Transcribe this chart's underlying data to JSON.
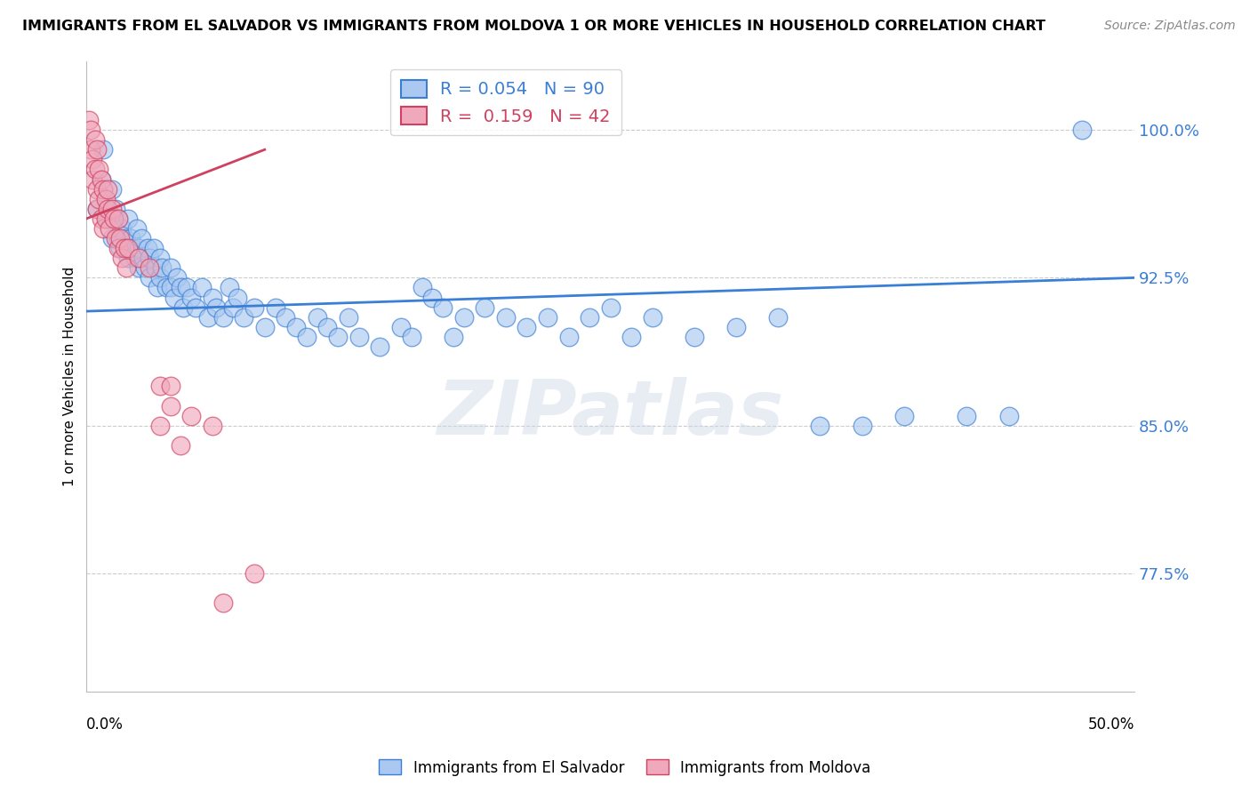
{
  "title": "IMMIGRANTS FROM EL SALVADOR VS IMMIGRANTS FROM MOLDOVA 1 OR MORE VEHICLES IN HOUSEHOLD CORRELATION CHART",
  "source": "Source: ZipAtlas.com",
  "ylabel": "1 or more Vehicles in Household",
  "ytick_labels": [
    "77.5%",
    "85.0%",
    "92.5%",
    "100.0%"
  ],
  "ytick_values": [
    0.775,
    0.85,
    0.925,
    1.0
  ],
  "xlim": [
    0.0,
    0.5
  ],
  "ylim": [
    0.715,
    1.035
  ],
  "legend_blue_r": "0.054",
  "legend_blue_n": "90",
  "legend_pink_r": "0.159",
  "legend_pink_n": "42",
  "blue_color": "#aac8f0",
  "pink_color": "#f0a8bc",
  "blue_line_color": "#3a7fd5",
  "pink_line_color": "#d04060",
  "watermark_text": "ZIPatlas",
  "blue_scatter": [
    [
      0.005,
      0.96
    ],
    [
      0.007,
      0.975
    ],
    [
      0.008,
      0.99
    ],
    [
      0.01,
      0.96
    ],
    [
      0.012,
      0.97
    ],
    [
      0.01,
      0.955
    ],
    [
      0.012,
      0.945
    ],
    [
      0.014,
      0.96
    ],
    [
      0.015,
      0.945
    ],
    [
      0.015,
      0.955
    ],
    [
      0.016,
      0.94
    ],
    [
      0.017,
      0.95
    ],
    [
      0.018,
      0.945
    ],
    [
      0.019,
      0.94
    ],
    [
      0.02,
      0.955
    ],
    [
      0.02,
      0.935
    ],
    [
      0.021,
      0.945
    ],
    [
      0.022,
      0.94
    ],
    [
      0.023,
      0.935
    ],
    [
      0.024,
      0.95
    ],
    [
      0.025,
      0.94
    ],
    [
      0.025,
      0.93
    ],
    [
      0.026,
      0.945
    ],
    [
      0.027,
      0.935
    ],
    [
      0.028,
      0.93
    ],
    [
      0.029,
      0.94
    ],
    [
      0.03,
      0.935
    ],
    [
      0.03,
      0.925
    ],
    [
      0.032,
      0.94
    ],
    [
      0.033,
      0.93
    ],
    [
      0.034,
      0.92
    ],
    [
      0.035,
      0.935
    ],
    [
      0.035,
      0.925
    ],
    [
      0.036,
      0.93
    ],
    [
      0.038,
      0.92
    ],
    [
      0.04,
      0.93
    ],
    [
      0.04,
      0.92
    ],
    [
      0.042,
      0.915
    ],
    [
      0.043,
      0.925
    ],
    [
      0.045,
      0.92
    ],
    [
      0.046,
      0.91
    ],
    [
      0.048,
      0.92
    ],
    [
      0.05,
      0.915
    ],
    [
      0.052,
      0.91
    ],
    [
      0.055,
      0.92
    ],
    [
      0.058,
      0.905
    ],
    [
      0.06,
      0.915
    ],
    [
      0.062,
      0.91
    ],
    [
      0.065,
      0.905
    ],
    [
      0.068,
      0.92
    ],
    [
      0.07,
      0.91
    ],
    [
      0.072,
      0.915
    ],
    [
      0.075,
      0.905
    ],
    [
      0.08,
      0.91
    ],
    [
      0.085,
      0.9
    ],
    [
      0.09,
      0.91
    ],
    [
      0.095,
      0.905
    ],
    [
      0.1,
      0.9
    ],
    [
      0.105,
      0.895
    ],
    [
      0.11,
      0.905
    ],
    [
      0.115,
      0.9
    ],
    [
      0.12,
      0.895
    ],
    [
      0.125,
      0.905
    ],
    [
      0.13,
      0.895
    ],
    [
      0.14,
      0.89
    ],
    [
      0.15,
      0.9
    ],
    [
      0.155,
      0.895
    ],
    [
      0.16,
      0.92
    ],
    [
      0.165,
      0.915
    ],
    [
      0.17,
      0.91
    ],
    [
      0.175,
      0.895
    ],
    [
      0.18,
      0.905
    ],
    [
      0.19,
      0.91
    ],
    [
      0.2,
      0.905
    ],
    [
      0.21,
      0.9
    ],
    [
      0.22,
      0.905
    ],
    [
      0.23,
      0.895
    ],
    [
      0.24,
      0.905
    ],
    [
      0.25,
      0.91
    ],
    [
      0.26,
      0.895
    ],
    [
      0.27,
      0.905
    ],
    [
      0.29,
      0.895
    ],
    [
      0.31,
      0.9
    ],
    [
      0.33,
      0.905
    ],
    [
      0.35,
      0.85
    ],
    [
      0.37,
      0.85
    ],
    [
      0.39,
      0.855
    ],
    [
      0.42,
      0.855
    ],
    [
      0.44,
      0.855
    ],
    [
      0.475,
      1.0
    ]
  ],
  "pink_scatter": [
    [
      0.001,
      1.005
    ],
    [
      0.002,
      1.0
    ],
    [
      0.002,
      0.99
    ],
    [
      0.003,
      0.985
    ],
    [
      0.003,
      0.975
    ],
    [
      0.004,
      0.995
    ],
    [
      0.004,
      0.98
    ],
    [
      0.005,
      0.99
    ],
    [
      0.005,
      0.97
    ],
    [
      0.005,
      0.96
    ],
    [
      0.006,
      0.98
    ],
    [
      0.006,
      0.965
    ],
    [
      0.007,
      0.975
    ],
    [
      0.007,
      0.955
    ],
    [
      0.008,
      0.97
    ],
    [
      0.008,
      0.95
    ],
    [
      0.009,
      0.965
    ],
    [
      0.009,
      0.955
    ],
    [
      0.01,
      0.97
    ],
    [
      0.01,
      0.96
    ],
    [
      0.011,
      0.95
    ],
    [
      0.012,
      0.96
    ],
    [
      0.013,
      0.955
    ],
    [
      0.014,
      0.945
    ],
    [
      0.015,
      0.955
    ],
    [
      0.015,
      0.94
    ],
    [
      0.016,
      0.945
    ],
    [
      0.017,
      0.935
    ],
    [
      0.018,
      0.94
    ],
    [
      0.019,
      0.93
    ],
    [
      0.02,
      0.94
    ],
    [
      0.025,
      0.935
    ],
    [
      0.03,
      0.93
    ],
    [
      0.035,
      0.87
    ],
    [
      0.035,
      0.85
    ],
    [
      0.04,
      0.87
    ],
    [
      0.04,
      0.86
    ],
    [
      0.045,
      0.84
    ],
    [
      0.05,
      0.855
    ],
    [
      0.06,
      0.85
    ],
    [
      0.065,
      0.76
    ],
    [
      0.08,
      0.775
    ]
  ],
  "blue_trend_x": [
    0.0,
    0.5
  ],
  "blue_trend_y": [
    0.908,
    0.925
  ],
  "pink_trend_x": [
    0.0,
    0.085
  ],
  "pink_trend_y": [
    0.955,
    0.99
  ]
}
